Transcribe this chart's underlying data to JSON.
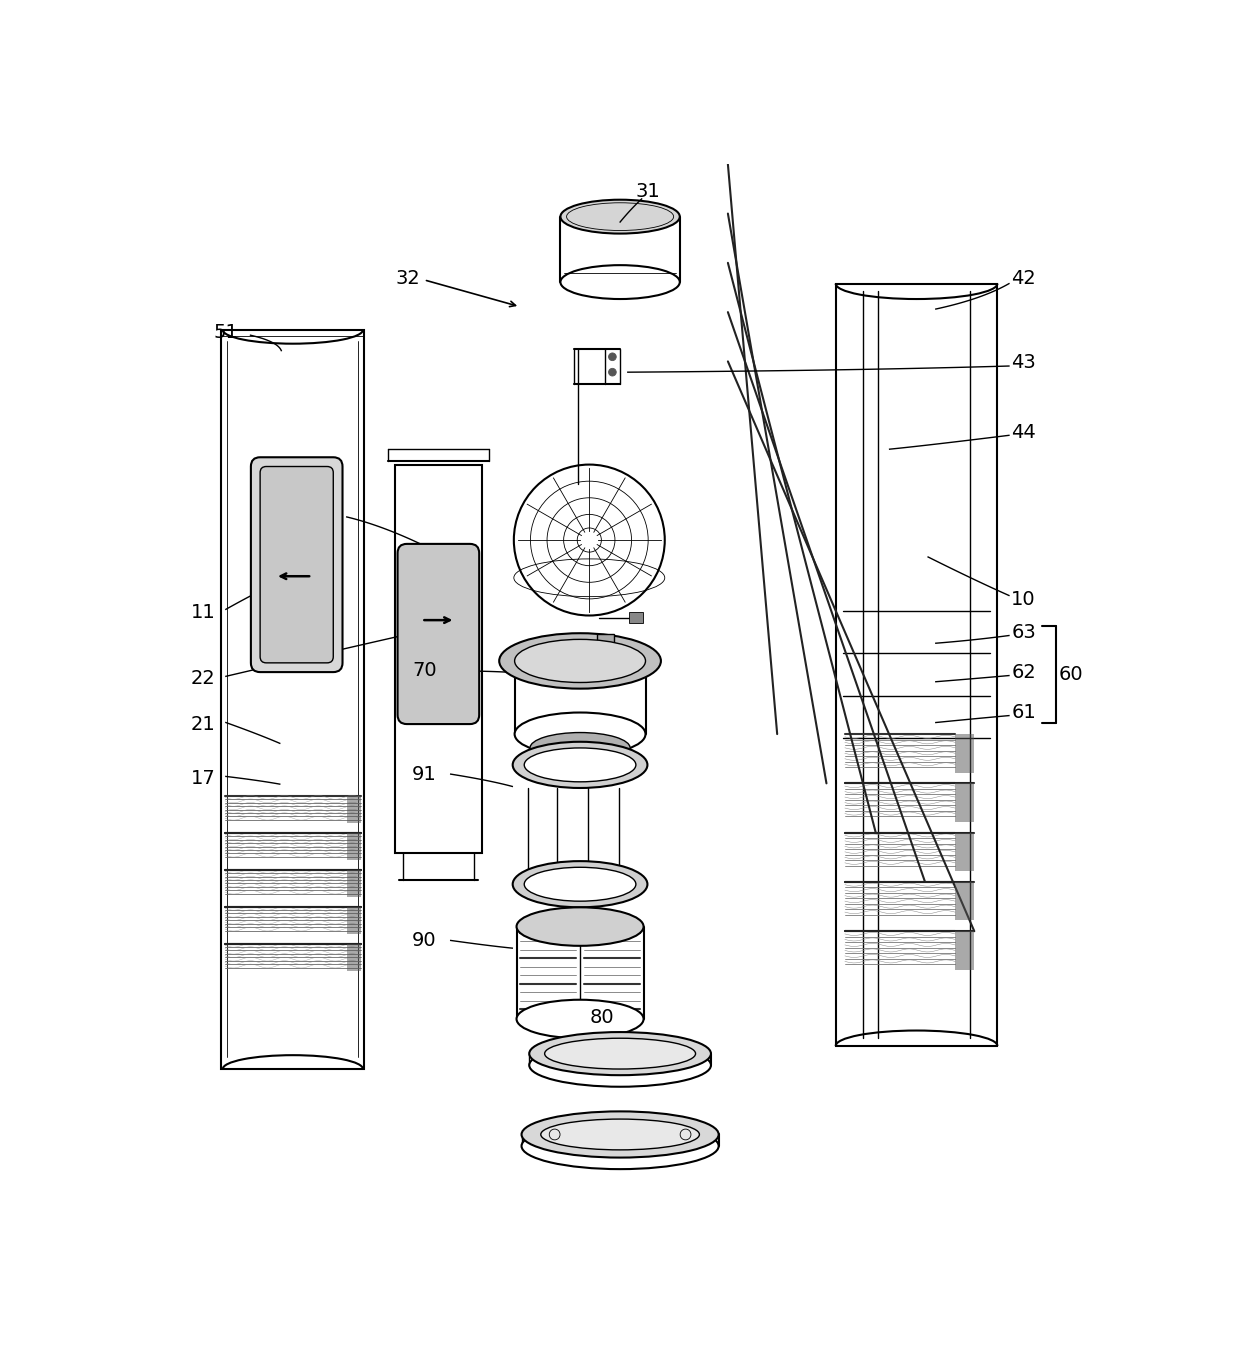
{
  "bg_color": "#ffffff",
  "lc": "#000000",
  "figsize": [
    12.4,
    13.69
  ],
  "dpi": 100,
  "fs": 14
}
